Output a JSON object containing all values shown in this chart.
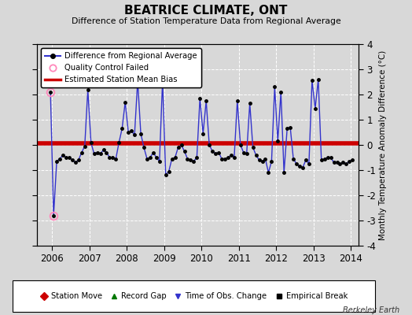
{
  "title": "BEATRICE CLIMATE, ONT",
  "subtitle": "Difference of Station Temperature Data from Regional Average",
  "ylabel": "Monthly Temperature Anomaly Difference (°C)",
  "bias": 0.07,
  "ylim": [
    -4,
    4
  ],
  "xlim": [
    2005.6,
    2014.2
  ],
  "xticks": [
    2006,
    2007,
    2008,
    2009,
    2010,
    2011,
    2012,
    2013,
    2014
  ],
  "yticks": [
    -4,
    -3,
    -2,
    -1,
    0,
    1,
    2,
    3,
    4
  ],
  "background_color": "#d8d8d8",
  "plot_bg_color": "#d8d8d8",
  "line_color": "#3333cc",
  "dot_color": "#000000",
  "bias_color": "#cc0000",
  "qc_fail_color": "#ff88bb",
  "watermark": "Berkeley Earth",
  "times": [
    2005.958,
    2006.042,
    2006.125,
    2006.208,
    2006.292,
    2006.375,
    2006.458,
    2006.542,
    2006.625,
    2006.708,
    2006.792,
    2006.875,
    2006.958,
    2007.042,
    2007.125,
    2007.208,
    2007.292,
    2007.375,
    2007.458,
    2007.542,
    2007.625,
    2007.708,
    2007.792,
    2007.875,
    2007.958,
    2008.042,
    2008.125,
    2008.208,
    2008.292,
    2008.375,
    2008.458,
    2008.542,
    2008.625,
    2008.708,
    2008.792,
    2008.875,
    2008.958,
    2009.042,
    2009.125,
    2009.208,
    2009.292,
    2009.375,
    2009.458,
    2009.542,
    2009.625,
    2009.708,
    2009.792,
    2009.875,
    2009.958,
    2010.042,
    2010.125,
    2010.208,
    2010.292,
    2010.375,
    2010.458,
    2010.542,
    2010.625,
    2010.708,
    2010.792,
    2010.875,
    2010.958,
    2011.042,
    2011.125,
    2011.208,
    2011.292,
    2011.375,
    2011.458,
    2011.542,
    2011.625,
    2011.708,
    2011.792,
    2011.875,
    2011.958,
    2012.042,
    2012.125,
    2012.208,
    2012.292,
    2012.375,
    2012.458,
    2012.542,
    2012.625,
    2012.708,
    2012.792,
    2012.875,
    2012.958,
    2013.042,
    2013.125,
    2013.208,
    2013.292,
    2013.375,
    2013.458,
    2013.542,
    2013.625,
    2013.708,
    2013.792,
    2013.875,
    2013.958,
    2014.042
  ],
  "values": [
    2.1,
    -2.8,
    -0.65,
    -0.55,
    -0.4,
    -0.5,
    -0.5,
    -0.6,
    -0.7,
    -0.6,
    -0.3,
    -0.05,
    2.2,
    0.1,
    -0.35,
    -0.3,
    -0.35,
    -0.2,
    -0.3,
    -0.5,
    -0.5,
    -0.55,
    0.1,
    0.65,
    1.7,
    0.5,
    0.55,
    0.4,
    2.55,
    0.45,
    -0.1,
    -0.55,
    -0.5,
    -0.3,
    -0.5,
    -0.65,
    2.55,
    -1.2,
    -1.05,
    -0.55,
    -0.5,
    -0.1,
    0.0,
    -0.25,
    -0.55,
    -0.6,
    -0.65,
    -0.5,
    1.85,
    0.45,
    1.75,
    0.0,
    -0.25,
    -0.35,
    -0.3,
    -0.55,
    -0.55,
    -0.5,
    -0.4,
    -0.5,
    1.75,
    0.0,
    -0.3,
    -0.35,
    1.65,
    -0.1,
    -0.4,
    -0.6,
    -0.65,
    -0.55,
    -1.1,
    -0.65,
    2.3,
    0.15,
    2.1,
    -1.1,
    0.65,
    0.7,
    -0.55,
    -0.75,
    -0.85,
    -0.9,
    -0.6,
    -0.75,
    2.55,
    1.45,
    2.6,
    -0.6,
    -0.55,
    -0.5,
    -0.5,
    -0.7,
    -0.7,
    -0.75,
    -0.7,
    -0.75,
    -0.65,
    -0.6
  ],
  "qc_fail_indices": [
    0,
    1
  ],
  "grid_color": "white",
  "grid_linestyle": "--",
  "grid_linewidth": 0.7
}
